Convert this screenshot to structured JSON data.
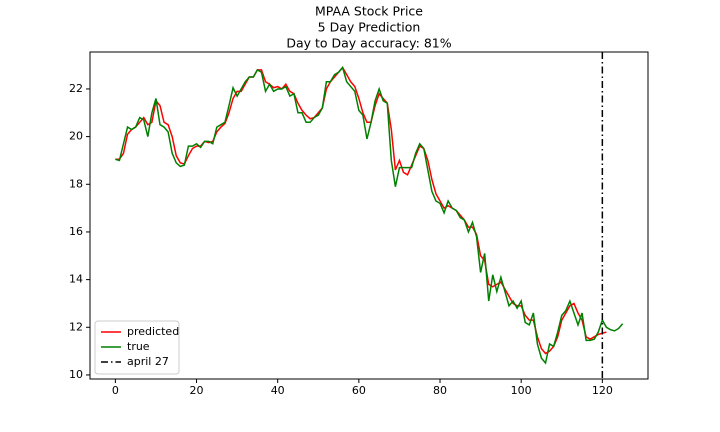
{
  "chart_data": {
    "type": "line",
    "title": [
      "MPAA Stock Price",
      "5 Day Prediction",
      "Day to Day accuracy: 81%"
    ],
    "series": [
      {
        "name": "predicted",
        "color": "#ff0000",
        "values": [
          19.05,
          19.05,
          19.3,
          20.1,
          20.3,
          20.4,
          20.6,
          20.8,
          20.5,
          20.6,
          21.5,
          21.3,
          20.6,
          20.5,
          20.0,
          19.2,
          18.9,
          18.85,
          19.2,
          19.5,
          19.6,
          19.6,
          19.8,
          19.75,
          19.8,
          20.2,
          20.4,
          20.55,
          21.0,
          21.6,
          21.9,
          21.9,
          22.2,
          22.5,
          22.5,
          22.8,
          22.8,
          22.3,
          22.2,
          22.05,
          22.1,
          22.0,
          22.2,
          21.9,
          21.8,
          21.4,
          21.1,
          20.9,
          20.75,
          20.8,
          21.0,
          21.2,
          22.0,
          22.3,
          22.5,
          22.7,
          22.9,
          22.6,
          22.3,
          22.1,
          21.6,
          21.0,
          20.6,
          20.6,
          21.3,
          21.8,
          21.6,
          21.4,
          20.3,
          18.6,
          19.0,
          18.5,
          18.4,
          18.8,
          19.2,
          19.6,
          19.5,
          19.0,
          18.2,
          17.6,
          17.3,
          17.0,
          17.1,
          17.0,
          16.9,
          16.7,
          16.5,
          16.2,
          16.2,
          15.9,
          15.0,
          14.8,
          13.8,
          13.7,
          13.8,
          13.9,
          13.6,
          13.3,
          13.0,
          12.9,
          12.9,
          12.5,
          12.3,
          12.3,
          11.6,
          11.1,
          10.9,
          11.0,
          11.2,
          11.6,
          12.3,
          12.6,
          12.9,
          13.0,
          12.6,
          12.3,
          11.6,
          11.5,
          11.6,
          11.7,
          11.75,
          11.8
        ]
      },
      {
        "name": "true",
        "color": "#008000",
        "values": [
          19.05,
          19.0,
          19.7,
          20.4,
          20.3,
          20.4,
          20.8,
          20.7,
          20.0,
          21.0,
          21.6,
          20.5,
          20.4,
          20.2,
          19.3,
          18.9,
          18.75,
          18.8,
          19.6,
          19.6,
          19.7,
          19.55,
          19.8,
          19.8,
          19.7,
          20.4,
          20.5,
          20.6,
          21.3,
          22.05,
          21.7,
          22.0,
          22.3,
          22.5,
          22.5,
          22.8,
          22.7,
          21.9,
          22.2,
          21.9,
          22.0,
          22.0,
          22.1,
          21.7,
          21.8,
          21.0,
          21.0,
          20.6,
          20.6,
          20.8,
          20.9,
          21.2,
          22.3,
          22.3,
          22.6,
          22.7,
          22.9,
          22.3,
          22.1,
          21.9,
          21.1,
          20.9,
          19.9,
          20.6,
          21.5,
          22.0,
          21.5,
          21.4,
          19.0,
          17.9,
          18.7,
          18.7,
          18.7,
          18.7,
          19.3,
          19.7,
          19.5,
          18.6,
          17.7,
          17.3,
          17.2,
          16.8,
          17.3,
          17.0,
          16.9,
          16.6,
          16.5,
          16.0,
          16.4,
          15.8,
          14.3,
          15.1,
          13.1,
          14.2,
          13.5,
          14.1,
          13.5,
          12.9,
          13.1,
          12.8,
          13.1,
          12.2,
          12.1,
          12.6,
          11.3,
          10.7,
          10.5,
          11.3,
          11.2,
          11.8,
          12.5,
          12.7,
          13.1,
          12.6,
          12.1,
          12.6,
          11.45,
          11.45,
          11.5,
          11.8,
          12.3,
          12.0,
          11.9,
          11.85,
          11.95,
          12.15
        ]
      }
    ],
    "vlines": [
      {
        "name": "april 27",
        "x": 120,
        "color": "#000000",
        "style": "dashdot"
      }
    ],
    "xlim": [
      -6.25,
      131.25
    ],
    "xticks": [
      0,
      20,
      40,
      60,
      80,
      100,
      120
    ],
    "ylim": [
      9.83,
      23.55
    ],
    "yticks": [
      10,
      12,
      14,
      16,
      18,
      20,
      22
    ],
    "legend": "lower left"
  }
}
